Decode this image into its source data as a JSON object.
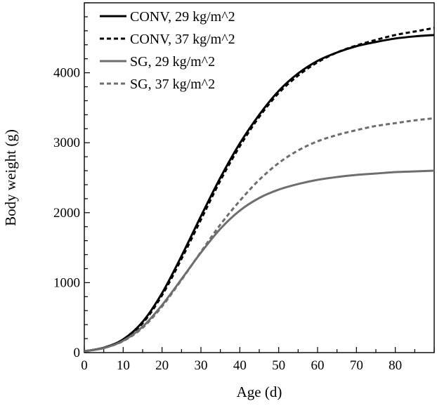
{
  "chart_data": {
    "type": "line",
    "title": "",
    "xlabel": "Age (d)",
    "ylabel": "Body weight (g)",
    "xlim": [
      0,
      90
    ],
    "ylim": [
      0,
      5000
    ],
    "xticks": [
      0,
      10,
      20,
      30,
      40,
      50,
      60,
      70,
      80
    ],
    "yticks": [
      0,
      1000,
      2000,
      3000,
      4000
    ],
    "grid": false,
    "legend_position": "top-left",
    "x": [
      0,
      5,
      10,
      15,
      20,
      25,
      30,
      35,
      40,
      45,
      50,
      55,
      60,
      65,
      70,
      75,
      80,
      85,
      90
    ],
    "series": [
      {
        "name": "CONV, 29 kg/m^2",
        "color": "#000000",
        "dash": "solid",
        "values": [
          20,
          70,
          190,
          440,
          850,
          1380,
          1950,
          2500,
          2990,
          3400,
          3740,
          3990,
          4170,
          4290,
          4380,
          4440,
          4490,
          4520,
          4540
        ]
      },
      {
        "name": "CONV, 37 kg/m^2",
        "color": "#000000",
        "dash": "dashed",
        "values": [
          20,
          70,
          185,
          420,
          820,
          1340,
          1900,
          2460,
          2950,
          3370,
          3710,
          3960,
          4150,
          4290,
          4390,
          4470,
          4540,
          4590,
          4640
        ]
      },
      {
        "name": "SG, 29 kg/m^2",
        "color": "#6e6e6e",
        "dash": "solid",
        "values": [
          20,
          65,
          170,
          370,
          680,
          1050,
          1430,
          1770,
          2030,
          2210,
          2330,
          2410,
          2470,
          2510,
          2540,
          2560,
          2580,
          2590,
          2600
        ]
      },
      {
        "name": "SG, 37 kg/m^2",
        "color": "#6e6e6e",
        "dash": "dashed",
        "values": [
          20,
          65,
          165,
          355,
          660,
          1040,
          1440,
          1830,
          2170,
          2470,
          2710,
          2890,
          3020,
          3110,
          3180,
          3240,
          3280,
          3320,
          3350
        ]
      }
    ]
  }
}
